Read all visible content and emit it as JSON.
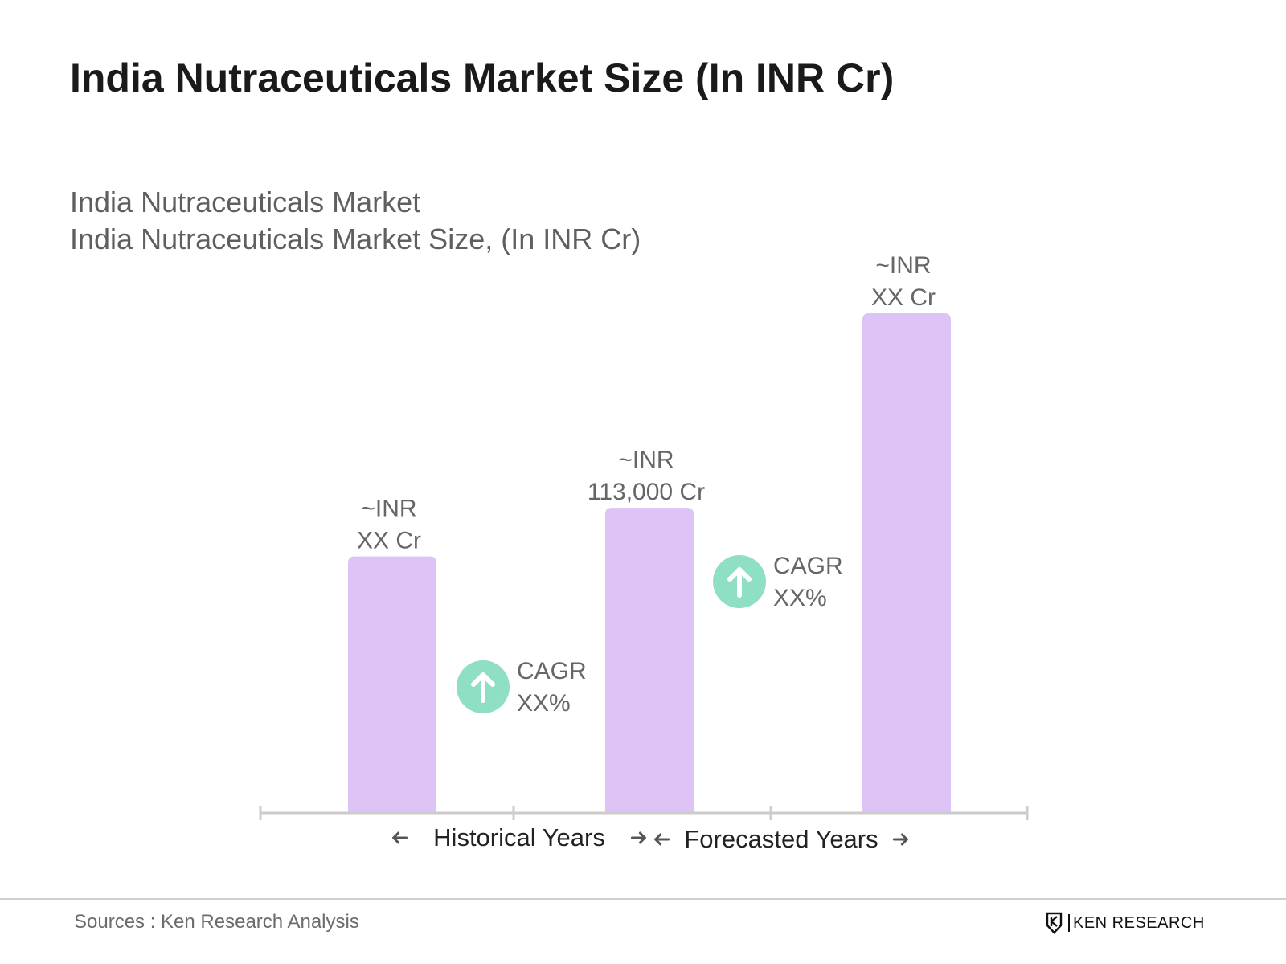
{
  "colors": {
    "bar": "#ddc3f6",
    "cagr_badge": "#8fdfc5",
    "axis": "#cccccc",
    "label": "#666666",
    "title": "#1a1a1a"
  },
  "title": "India Nutraceuticals Market Size (In INR Cr)",
  "subtitle_line1": "India Nutraceuticals Market",
  "subtitle_line2": "India Nutraceuticals Market Size, (In INR Cr)",
  "chart_data": {
    "type": "bar",
    "categories": [
      "",
      "",
      ""
    ],
    "values": [
      95000,
      113000,
      185000
    ],
    "ylim": [
      0,
      200000
    ],
    "data_labels": [
      [
        "~INR",
        "XX Cr"
      ],
      [
        "~INR",
        "113,000 Cr"
      ],
      [
        "~INR",
        "XX Cr"
      ]
    ],
    "cagr_annotations": [
      {
        "lines": [
          "CAGR",
          "XX%"
        ],
        "icon": "arrow-up-icon"
      },
      {
        "lines": [
          "CAGR",
          "XX%"
        ],
        "icon": "arrow-up-icon"
      }
    ],
    "period_labels": [
      "Historical Years",
      "Forecasted Years"
    ],
    "grid": false,
    "legend": "none"
  },
  "footer": {
    "sources": "Sources : Ken Research Analysis",
    "logo_text": "KEN RESEARCH",
    "logo_icon": "ken-research-logo-icon"
  }
}
